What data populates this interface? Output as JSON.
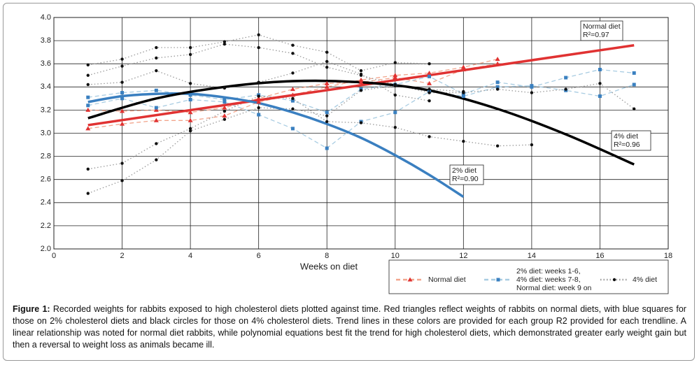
{
  "chart_data": {
    "type": "line",
    "xlabel": "Weeks on diet",
    "xlim": [
      0,
      18
    ],
    "xticks": [
      0,
      2,
      4,
      6,
      8,
      10,
      12,
      14,
      16,
      18
    ],
    "ylim": [
      2.0,
      4.0
    ],
    "yticks": [
      {
        "value": 2.0,
        "label": "2.0"
      },
      2.2,
      2.4,
      2.6,
      2.8,
      {
        "value": 3.0,
        "label": "3.0"
      },
      3.2,
      3.4,
      3.6,
      3.8,
      {
        "value": 4.0,
        "label": "4.0"
      }
    ],
    "grid": true,
    "x": [
      1,
      2,
      3,
      4,
      5,
      6,
      7,
      8,
      9,
      10,
      11,
      12,
      13,
      14,
      15,
      16,
      17
    ],
    "series": [
      {
        "name": [
          "Normal diet"
        ],
        "color": "#e03232",
        "line_color": "#f2a58c",
        "marker": "triangle",
        "style": "dashed",
        "animals": [
          [
            3.04,
            3.08,
            3.11,
            3.11,
            3.15,
            3.27,
            3.33,
            3.4,
            3.46,
            3.5,
            3.52,
            3.57,
            3.64,
            null,
            null,
            null,
            null
          ],
          [
            3.2,
            3.19,
            3.2,
            3.18,
            3.22,
            3.3,
            3.38,
            3.43,
            3.44,
            3.48,
            3.43,
            3.55,
            3.6,
            null,
            null,
            null,
            null
          ]
        ]
      },
      {
        "name": [
          "2% diet: weeks 1-6,",
          "4% diet: weeks 7-8,",
          "Normal diet: week 9 on"
        ],
        "color": "#3a80c0",
        "line_color": "#a8cce2",
        "marker": "square",
        "style": "dashed",
        "animals": [
          [
            3.31,
            3.35,
            3.37,
            3.33,
            3.29,
            3.33,
            3.28,
            3.18,
            3.38,
            3.42,
            3.49,
            3.34,
            3.44,
            3.4,
            3.48,
            3.55,
            3.52
          ],
          [
            3.24,
            3.3,
            3.22,
            3.29,
            3.27,
            3.16,
            3.04,
            2.87,
            3.1,
            3.18,
            3.36,
            3.32,
            3.4,
            3.41,
            3.37,
            3.32,
            3.42
          ]
        ]
      },
      {
        "name": [
          "4% diet"
        ],
        "color": "#111111",
        "line_color": "#9a9a9a",
        "marker": "circle",
        "style": "dotted",
        "animals": [
          [
            3.59,
            3.64,
            3.74,
            3.74,
            3.79,
            3.85,
            3.76,
            3.7,
            3.54,
            3.61,
            3.6,
            null,
            null,
            null,
            null,
            null,
            null
          ],
          [
            3.5,
            3.58,
            3.65,
            3.68,
            3.77,
            3.74,
            3.69,
            3.57,
            3.5,
            3.42,
            3.35,
            3.35,
            3.38,
            3.35,
            3.38,
            3.43,
            3.21
          ],
          [
            3.42,
            3.44,
            3.54,
            3.43,
            3.39,
            3.44,
            3.52,
            3.62,
            3.51,
            3.33,
            3.28,
            null,
            null,
            null,
            null,
            null,
            null
          ],
          [
            2.69,
            2.74,
            2.91,
            3.04,
            3.19,
            3.32,
            3.3,
            3.1,
            3.09,
            3.05,
            2.97,
            2.93,
            2.89,
            2.9,
            null,
            null,
            null
          ],
          [
            2.48,
            2.59,
            2.77,
            3.02,
            3.12,
            3.22,
            3.21,
            3.15,
            3.37,
            3.41,
            3.38,
            3.36,
            null,
            null,
            null,
            null,
            null
          ]
        ]
      }
    ],
    "trendlines": [
      {
        "color": "#e03232",
        "x": [
          1,
          17
        ],
        "values": [
          3.07,
          3.76
        ]
      },
      {
        "color": "#3a7fc0",
        "x": [
          1,
          2,
          3,
          4,
          5,
          6,
          7,
          8,
          9,
          10,
          11,
          12
        ],
        "values": [
          3.27,
          3.32,
          3.34,
          3.34,
          3.31,
          3.26,
          3.18,
          3.08,
          2.96,
          2.81,
          2.64,
          2.45
        ]
      },
      {
        "color": "#000000",
        "x": [
          1,
          3,
          5,
          7,
          9,
          11,
          13,
          15,
          17
        ],
        "values": [
          3.13,
          3.3,
          3.4,
          3.45,
          3.44,
          3.37,
          3.21,
          2.99,
          2.73
        ]
      }
    ],
    "annotations": [
      {
        "lines": [
          "Normal diet",
          "R²=0.97"
        ]
      },
      {
        "lines": [
          "2% diet",
          "R²=0.90"
        ]
      },
      {
        "lines": [
          "4% diet",
          "R²=0.96"
        ]
      }
    ]
  },
  "caption_label": "Figure 1:",
  "caption": "Recorded weights for rabbits exposed to high cholesterol diets plotted against time. Red triangles reflect weights of rabbits on normal diets, with blue squares for those on 2% cholesterol diets and black circles for those on 4% cholesterol diets. Trend lines in these colors are provided for each group R2 provided for each trendline. A linear relationship was noted for normal diet rabbits, while polynomial equations best fit the trend for high cholesterol diets, which demonstrated greater early weight gain but then a reversal to weight loss as animals became ill."
}
